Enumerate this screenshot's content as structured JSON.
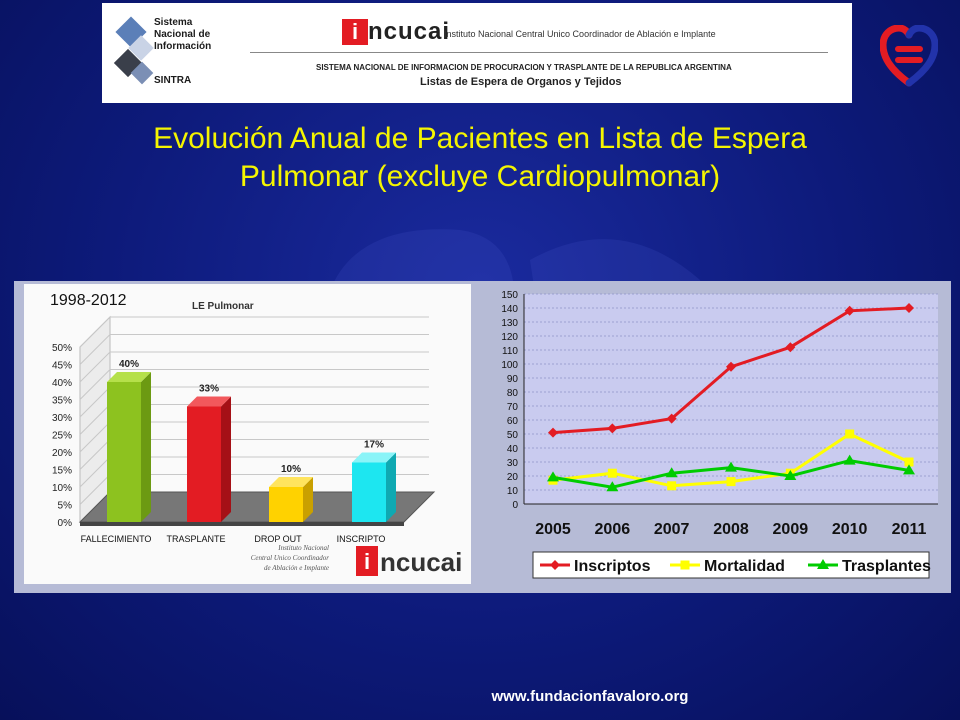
{
  "banner": {
    "sintra_lines": [
      "Sistema",
      "Nacional de",
      "Información"
    ],
    "sintra_name": "SINTRA",
    "incucai_logo_text": "ncucai",
    "incucai_logo_initial": "i",
    "incucai_full_name": "Instituto Nacional Central Unico Coordinador de Ablación e Implante",
    "subtitle_1": "SISTEMA NACIONAL DE INFORMACION DE PROCURACION Y TRASPLANTE DE LA REPUBLICA ARGENTINA",
    "subtitle_2": "Listas de Espera de Organos y Tejidos"
  },
  "slide": {
    "title_line_1": "Evolución Anual de Pacientes en Lista de Espera",
    "title_line_2": "Pulmonar (excluye Cardiopulmonar)",
    "footer_url": "www.fundacionfavaloro.org"
  },
  "colors": {
    "title": "#f5f500",
    "green": "#8dc21f",
    "red": "#e31c23",
    "yellow": "#ffd200",
    "cyan": "#1de6f0",
    "inscriptos": "#e31c23",
    "mortalidad": "#ffff00",
    "trasplantes": "#00cc00"
  },
  "chart_data": [
    {
      "type": "bar",
      "period_label": "1998-2012",
      "title": "LE Pulmonar",
      "categories": [
        "FALLECIMIENTO",
        "TRASPLANTE",
        "DROP OUT",
        "INSCRIPTO"
      ],
      "values": [
        40,
        33,
        10,
        17
      ],
      "value_labels": [
        "40%",
        "33%",
        "10%",
        "17%"
      ],
      "yticks": [
        "0%",
        "5%",
        "10%",
        "15%",
        "20%",
        "25%",
        "30%",
        "35%",
        "40%",
        "45%",
        "50%"
      ],
      "ylim": [
        0,
        50
      ],
      "grid": true,
      "watermark_lines": [
        "Instituto Nacional",
        "Central Unico Coordinador",
        "de Ablación e Implante"
      ],
      "logo_text": "ncucai",
      "logo_initial": "i"
    },
    {
      "type": "line",
      "x": [
        "2005",
        "2006",
        "2007",
        "2008",
        "2009",
        "2010",
        "2011"
      ],
      "series": [
        {
          "name": "Inscriptos",
          "values": [
            51,
            54,
            61,
            98,
            112,
            138,
            140
          ]
        },
        {
          "name": "Mortalidad",
          "values": [
            17,
            22,
            13,
            16,
            22,
            50,
            30
          ]
        },
        {
          "name": "Trasplantes",
          "values": [
            19,
            12,
            22,
            26,
            20,
            31,
            24
          ]
        }
      ],
      "ylim": [
        0,
        150
      ],
      "yticks": [
        0,
        10,
        20,
        30,
        40,
        50,
        60,
        70,
        80,
        90,
        100,
        110,
        120,
        130,
        140,
        150
      ],
      "grid": true,
      "legend_position": "bottom"
    }
  ]
}
